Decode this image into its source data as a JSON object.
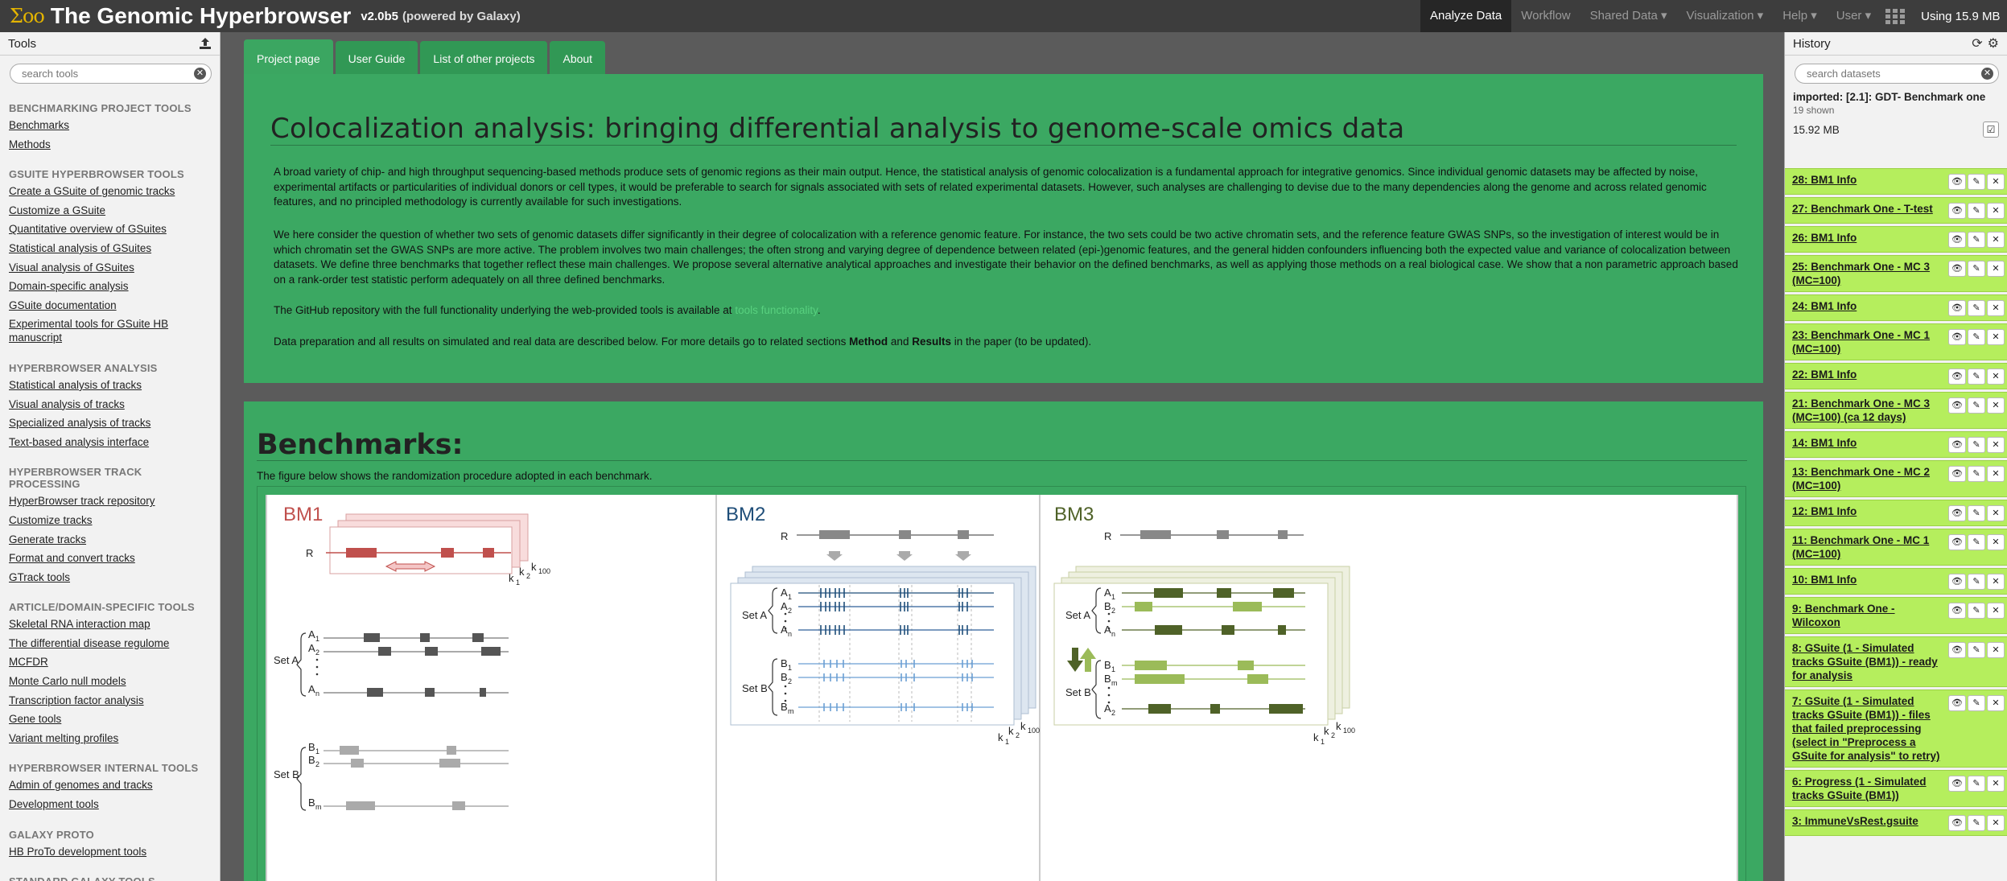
{
  "masthead": {
    "logo": "Σoo",
    "title": "The Genomic Hyperbrowser",
    "version": "v2.0b5",
    "powered": "(powered by Galaxy)",
    "nav": [
      {
        "label": "Analyze Data",
        "active": true
      },
      {
        "label": "Workflow",
        "active": false
      },
      {
        "label": "Shared Data ▾",
        "active": false
      },
      {
        "label": "Visualization ▾",
        "active": false
      },
      {
        "label": "Help ▾",
        "active": false
      },
      {
        "label": "User ▾",
        "active": false
      }
    ],
    "quota": "Using 15.9 MB"
  },
  "tools": {
    "title": "Tools",
    "search_placeholder": "search tools",
    "sections": [
      {
        "title": "BENCHMARKING PROJECT TOOLS",
        "items": [
          "Benchmarks",
          "Methods"
        ]
      },
      {
        "title": "GSUITE HYPERBROWSER TOOLS",
        "items": [
          "Create a GSuite of genomic tracks",
          "Customize a GSuite",
          "Quantitative overview of GSuites",
          "Statistical analysis of GSuites",
          "Visual analysis of GSuites",
          "Domain-specific analysis",
          "GSuite documentation",
          "Experimental tools for GSuite HB manuscript"
        ]
      },
      {
        "title": "HYPERBROWSER ANALYSIS",
        "items": [
          "Statistical analysis of tracks",
          "Visual analysis of tracks",
          "Specialized analysis of tracks",
          "Text-based analysis interface"
        ]
      },
      {
        "title": "HYPERBROWSER TRACK PROCESSING",
        "items": [
          "HyperBrowser track repository",
          "Customize tracks",
          "Generate tracks",
          "Format and convert tracks",
          "GTrack tools"
        ]
      },
      {
        "title": "ARTICLE/DOMAIN-SPECIFIC TOOLS",
        "items": [
          "Skeletal RNA interaction map",
          "The differential disease regulome",
          "MCFDR",
          "Monte Carlo null models",
          "Transcription factor analysis",
          "Gene tools",
          "Variant melting profiles"
        ]
      },
      {
        "title": "HYPERBROWSER INTERNAL TOOLS",
        "items": [
          "Admin of genomes and tracks",
          "Development tools"
        ]
      },
      {
        "title": "GALAXY PROTO",
        "items": [
          "HB ProTo development tools"
        ]
      },
      {
        "title": "STANDARD GALAXY TOOLS",
        "items": []
      }
    ]
  },
  "center": {
    "tabs": [
      "Project page",
      "User Guide",
      "List of other projects",
      "About"
    ],
    "title": "Colocalization analysis: bringing differential analysis to genome-scale omics data",
    "p1": "A broad variety of chip- and high throughput sequencing-based methods produce sets of genomic regions as their main output. Hence, the statistical analysis of genomic colocalization is a fundamental approach for integrative genomics. Since individual genomic datasets may be affected by noise, experimental artifacts or particularities of individual donors or cell types, it would be preferable to search for signals associated with sets of related experimental datasets. However, such analyses are challenging to devise due to the many dependencies along the genome and across related genomic features, and no principled methodology is currently available for such investigations.",
    "p2": "We here consider the question of whether two sets of genomic datasets differ significantly in their degree of colocalization with a reference genomic feature. For instance, the two sets could be two active chromatin sets, and the reference feature GWAS SNPs, so the investigation of interest would be in which chromatin set the GWAS SNPs are more active. The problem involves two main challenges; the often strong and varying degree of dependence between related (epi-)genomic features, and the general hidden confounders influencing both the expected value and variance of colocalization between datasets. We define three benchmarks that together reflect these main challenges. We propose several alternative analytical approaches and investigate their behavior on the defined benchmarks, as well as applying those methods on a real biological case. We show that a non parametric approach based on a rank-order test statistic perform adequately on all three defined benchmarks.",
    "p3_pre": "The GitHub repository with the full functionality underlying the web-provided tools is available at ",
    "p3_link": "tools functionality",
    "p3_post": ".",
    "p4_pre": "Data preparation and all results on simulated and real data are described below. For more details go to related sections ",
    "p4_b1": "Method",
    "p4_mid": " and ",
    "p4_b2": "Results",
    "p4_post": " in the paper (to be updated).",
    "bm_title": "Benchmarks:",
    "bm_caption": "The figure below shows the randomization procedure adopted in each benchmark.",
    "figure": {
      "panels": [
        {
          "title": "BM1",
          "color": "#c0504d"
        },
        {
          "title": "BM2",
          "color": "#1f4e79"
        },
        {
          "title": "BM3",
          "color": "#4f6228"
        }
      ],
      "labels": {
        "R": "R",
        "setA": "Set A",
        "setB": "Set B",
        "k1": "k1",
        "k2": "k2",
        "k100": "k100"
      }
    }
  },
  "history": {
    "title": "History",
    "search_placeholder": "search datasets",
    "name": "imported: [2.1]: GDT- Benchmark one",
    "shown": "19 shown",
    "size": "15.92 MB",
    "datasets": [
      "28: BM1 Info",
      "27: Benchmark One - T-test",
      "26: BM1 Info",
      "25: Benchmark One - MC 3 (MC=100)",
      "24: BM1 Info",
      "23: Benchmark One - MC 1 (MC=100)",
      "22: BM1 Info",
      "21: Benchmark One - MC 3 (MC=100) (ca 12 days)",
      "14: BM1 Info",
      "13: Benchmark One - MC 2 (MC=100)",
      "12: BM1 Info",
      "11: Benchmark One - MC 1 (MC=100)",
      "10: BM1 Info",
      "9: Benchmark One - Wilcoxon",
      "8: GSuite (1 - Simulated tracks GSuite (BM1)) - ready for analysis",
      "7: GSuite (1 - Simulated tracks GSuite (BM1)) - files that failed preprocessing (select in \"Preprocess a GSuite for analysis\" to retry)",
      "6: Progress (1 - Simulated tracks GSuite (BM1))",
      "3: ImmuneVsRest.gsuite"
    ]
  }
}
